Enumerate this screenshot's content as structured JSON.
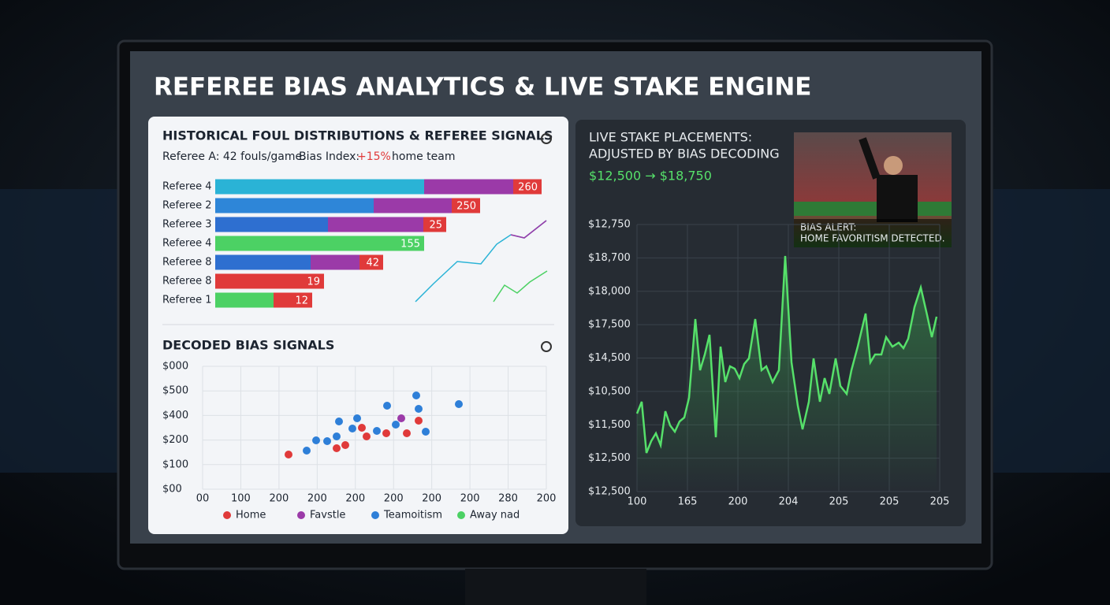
{
  "header": {
    "title": "REFEREE BIAS ANALYTICS & LIVE STAKE ENGINE"
  },
  "fouls_panel": {
    "title": "HISTORICAL FOUL DISTRIBUTIONS & REFEREE SIGNALS",
    "summary": {
      "ref": "Referee A:  42 fouls/game.",
      "bias_label": "Bias Index:",
      "bias_value": "+15%",
      "bias_target": "home team"
    },
    "bar_chart": {
      "type": "bar",
      "orientation": "horizontal",
      "xlim": [
        0,
        450
      ],
      "bars": [
        {
          "label": "Referee 4",
          "end_label": 260,
          "segments": [
            {
              "value": 265,
              "color": "#2ab3d6"
            },
            {
              "value": 113,
              "color": "#9b3aa8"
            },
            {
              "value": 36,
              "color": "#e03a3a"
            }
          ]
        },
        {
          "label": "Referee 2",
          "end_label": 250,
          "segments": [
            {
              "value": 201,
              "color": "#2e86d8"
            },
            {
              "value": 99,
              "color": "#9b3aa8"
            },
            {
              "value": 36,
              "color": "#e03a3a"
            }
          ]
        },
        {
          "label": "Referee 3",
          "end_label": 25,
          "segments": [
            {
              "value": 143,
              "color": "#2e6fd0"
            },
            {
              "value": 121,
              "color": "#9b3aa8"
            },
            {
              "value": 29,
              "color": "#e03a3a"
            }
          ]
        },
        {
          "label": "Referee 4",
          "end_label": 155,
          "segments": [
            {
              "value": 265,
              "color": "#4cd164"
            }
          ]
        },
        {
          "label": "Referee 8",
          "end_label": 42,
          "segments": [
            {
              "value": 121,
              "color": "#2e6fd0"
            },
            {
              "value": 62,
              "color": "#9b3aa8"
            },
            {
              "value": 30,
              "color": "#e03a3a"
            }
          ]
        },
        {
          "label": "Referee 8",
          "end_label": 19,
          "segments": [
            {
              "value": 138,
              "color": "#e03a3a"
            }
          ]
        },
        {
          "label": "Referee 1",
          "end_label": 12,
          "segments": [
            {
              "value": 74,
              "color": "#4cd164"
            },
            {
              "value": 49,
              "color": "#e03a3a"
            }
          ]
        }
      ]
    }
  },
  "signals_panel": {
    "title": "DECODED BIAS SIGNALS",
    "scatter": {
      "type": "scatter",
      "xlim": [
        0,
        436
      ],
      "ylim": [
        0,
        156
      ],
      "y_labels": [
        "$000",
        "$500",
        "$400",
        "$200",
        "$100",
        "$00"
      ],
      "x_labels": [
        "00",
        "100",
        "200",
        "200",
        "200",
        "200",
        "200",
        "200",
        "280",
        "200"
      ],
      "series": [
        {
          "name": "Home",
          "color": "#e03a3a",
          "x": [
            109,
            170,
            181,
            208,
            202,
            233,
            259,
            274
          ],
          "y": [
            44,
            52,
            56,
            67,
            78,
            71,
            71,
            87
          ]
        },
        {
          "name": "Favstle",
          "color": "#9b3aa8",
          "x": [
            252
          ],
          "y": [
            90
          ]
        },
        {
          "name": "Teamoitism",
          "color": "#2e7fd8",
          "x": [
            132,
            144,
            158,
            170,
            173,
            190,
            196,
            221,
            234,
            245,
            271,
            274,
            283,
            325
          ],
          "y": [
            49,
            62,
            61,
            67,
            86,
            77,
            90,
            74,
            106,
            82,
            119,
            102,
            73,
            108
          ]
        },
        {
          "name": "Away nad",
          "color": "#4cd164",
          "x": [],
          "y": []
        }
      ]
    }
  },
  "stake_panel": {
    "title_1": "LIVE STAKE PLACEMENTS:",
    "title_2": "ADJUSTED BY BIAS DECODING",
    "change": "$12,500 → $18,750",
    "alert": {
      "line_1": "BIAS ALERT:",
      "line_2": "HOME FAVORITISM DETECTED."
    },
    "line_chart": {
      "type": "line",
      "color": "#56e06a",
      "xlim": [
        0,
        384
      ],
      "ylim": [
        0,
        339
      ],
      "y_labels": [
        "$12,750",
        "$18,700",
        "$18,000",
        "$17,500",
        "$14,500",
        "$10,500",
        "$11,500",
        "$12,500",
        "$12,500"
      ],
      "x_labels": [
        "100",
        "165",
        "200",
        "204",
        "205",
        "205",
        "205"
      ],
      "x": [
        0,
        6,
        12,
        18,
        24,
        30,
        36,
        42,
        48,
        54,
        60,
        66,
        74,
        80,
        86,
        92,
        100,
        106,
        112,
        118,
        124,
        130,
        136,
        142,
        150,
        158,
        164,
        172,
        180,
        188,
        196,
        204,
        210,
        218,
        224,
        232,
        238,
        244,
        252,
        258,
        266,
        272,
        280,
        290,
        296,
        302,
        310,
        316,
        324,
        332,
        338,
        344,
        352,
        360,
        368,
        374,
        380
      ],
      "y": [
        99,
        114,
        49,
        64,
        74,
        59,
        102,
        84,
        76,
        89,
        94,
        119,
        219,
        154,
        174,
        199,
        69,
        184,
        139,
        159,
        156,
        144,
        162,
        169,
        219,
        154,
        159,
        139,
        154,
        299,
        164,
        109,
        79,
        114,
        169,
        114,
        144,
        124,
        169,
        134,
        124,
        154,
        184,
        226,
        164,
        174,
        174,
        196,
        184,
        189,
        182,
        194,
        234,
        259,
        224,
        196,
        222
      ]
    }
  }
}
